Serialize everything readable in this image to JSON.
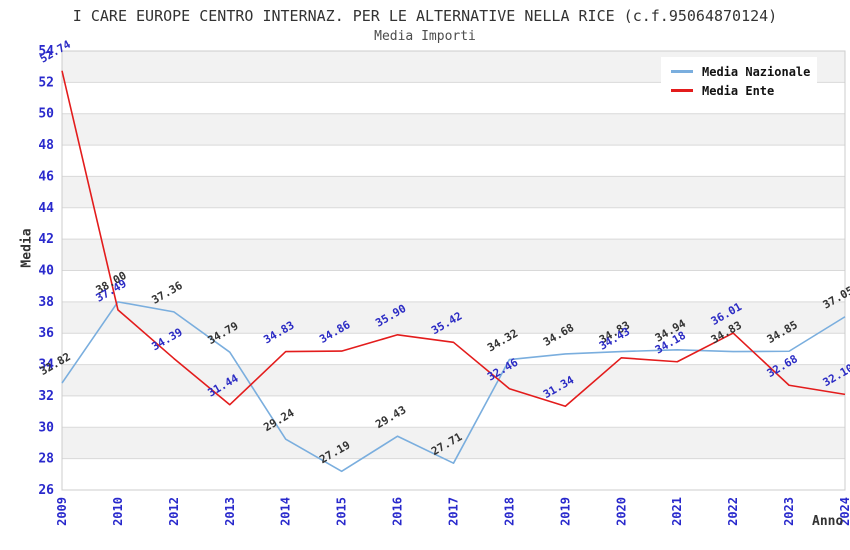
{
  "title": "I CARE EUROPE CENTRO INTERNAZ. PER LE ALTERNATIVE NELLA RICE (c.f.95064870124)",
  "subtitle": "Media Importi",
  "colors": {
    "band": "#f2f2f2",
    "grid": "#d9d9d9",
    "border": "#cccccc",
    "tick": "#2929cc",
    "title": "#333333",
    "subtitle": "#4d4d4d",
    "axis_title": "#333333",
    "legend_bg": "#ffffff",
    "legend_text": "#111111"
  },
  "chart_data": {
    "type": "line",
    "title": "I CARE EUROPE CENTRO INTERNAZ. PER LE ALTERNATIVE NELLA RICE (c.f.95064870124)",
    "subtitle": "Media Importi",
    "xlabel": "Anno",
    "ylabel": "Media",
    "ylim": [
      26,
      54
    ],
    "ytick_step": 2,
    "grid": true,
    "legend_position": "top-right",
    "x": [
      "2009",
      "2010",
      "2012",
      "2013",
      "2014",
      "2015",
      "2016",
      "2017",
      "2018",
      "2019",
      "2020",
      "2021",
      "2022",
      "2023",
      "2024"
    ],
    "series": [
      {
        "name": "Media Nazionale",
        "color": "#7aaede",
        "label_color": "#333333",
        "values": [
          32.82,
          38.0,
          37.36,
          34.79,
          29.24,
          27.19,
          29.43,
          27.71,
          34.32,
          34.68,
          34.83,
          34.94,
          34.83,
          34.85,
          37.05
        ]
      },
      {
        "name": "Media Ente",
        "color": "#e31c1c",
        "label_color": "#2b2bc4",
        "values": [
          52.74,
          37.49,
          34.39,
          31.44,
          34.83,
          34.86,
          35.9,
          35.42,
          32.46,
          31.34,
          34.43,
          34.18,
          36.01,
          32.68,
          32.1
        ]
      }
    ]
  }
}
